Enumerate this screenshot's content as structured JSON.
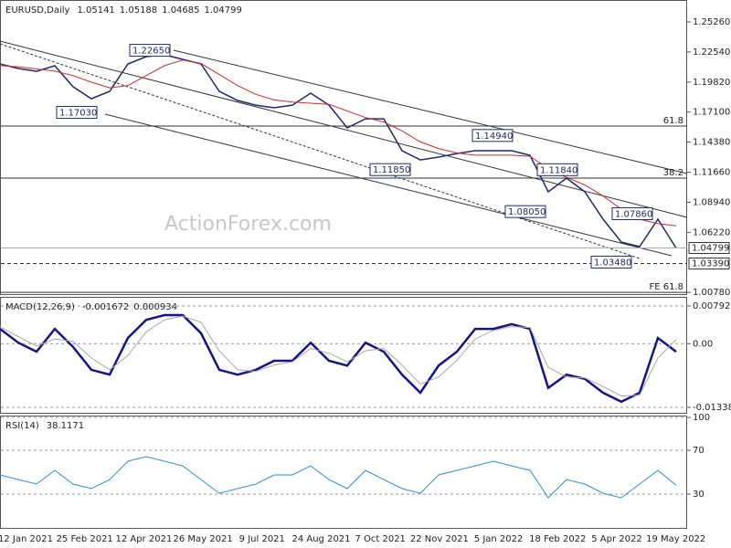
{
  "chart_data": [
    {
      "type": "line",
      "title": "EURUSD,Daily",
      "ohlc": [
        1.05141,
        1.05188,
        1.04685,
        1.04799
      ],
      "watermark": "ActionForex.com",
      "date_labels": [
        "12 Jan 2021",
        "25 Feb 2021",
        "12 Apr 2021",
        "26 May 2021",
        "9 Jul 2021",
        "24 Aug 2021",
        "7 Oct 2021",
        "22 Nov 2021",
        "5 Jan 2022",
        "18 Feb 2022",
        "5 Apr 2022",
        "19 May 2022"
      ],
      "ylim": [
        1.00623,
        1.27244
      ],
      "yticks": [
        {
          "value": 1.2526,
          "label": "1.25260"
        },
        {
          "value": 1.2254,
          "label": "1.22540"
        },
        {
          "value": 1.1982,
          "label": "1.19820"
        },
        {
          "value": 1.171,
          "label": "1.17100"
        },
        {
          "value": 1.1438,
          "label": "1.14380"
        },
        {
          "value": 1.1166,
          "label": "1.11660"
        },
        {
          "value": 1.0894,
          "label": "1.08940"
        },
        {
          "value": 1.0622,
          "label": "1.06220"
        },
        {
          "value": 1.0078,
          "label": "1.00780"
        }
      ],
      "series": [
        {
          "color": "#1f2a6e",
          "values": [
            1.2146,
            1.2104,
            1.2079,
            1.2129,
            1.1939,
            1.1831,
            1.1898,
            1.2146,
            1.2212,
            1.2228,
            1.2187,
            1.2146,
            1.1898,
            1.1815,
            1.1773,
            1.1749,
            1.1773,
            1.1881,
            1.1773,
            1.1567,
            1.1649,
            1.1649,
            1.136,
            1.1277,
            1.1302,
            1.1335,
            1.136,
            1.136,
            1.136,
            1.1319,
            1.0988,
            1.1112,
            1.0988,
            1.074,
            1.0533,
            1.0492,
            1.074,
            1.0479
          ]
        },
        {
          "color": "#d42a2a",
          "values": [
            1.213,
            1.212,
            1.21,
            1.208,
            1.204,
            1.198,
            1.193,
            1.195,
            1.204,
            1.213,
            1.218,
            1.215,
            1.205,
            1.195,
            1.187,
            1.182,
            1.18,
            1.179,
            1.178,
            1.172,
            1.166,
            1.162,
            1.154,
            1.144,
            1.138,
            1.134,
            1.132,
            1.132,
            1.132,
            1.131,
            1.12,
            1.112,
            1.105,
            1.095,
            1.083,
            1.074,
            1.07,
            1.068
          ]
        }
      ],
      "levels": [
        {
          "label": "61.8",
          "value": 1.1583
        },
        {
          "label": "38.2",
          "value": 1.1112
        },
        {
          "label": "FE 61.8",
          "value": 1.0078
        }
      ],
      "support": {
        "value": 1.0339,
        "label": "1.03390"
      },
      "annotations": [
        {
          "value": 1.2265,
          "label": "1.22650"
        },
        {
          "value": 1.1703,
          "label": "1.17030"
        },
        {
          "value": 1.1185,
          "label": "1.11850"
        },
        {
          "value": 1.1494,
          "label": "1.14940"
        },
        {
          "value": 1.1184,
          "label": "1.11840"
        },
        {
          "value": 1.0805,
          "label": "1.08050"
        },
        {
          "value": 1.0786,
          "label": "1.07860"
        },
        {
          "value": 1.0348,
          "label": "1.03480"
        }
      ]
    },
    {
      "type": "line",
      "title": "MACD(12,26,9)",
      "header_values": [
        -0.001672,
        0.000934
      ],
      "ylim": [
        -0.01453,
        0.00984
      ],
      "yticks": [
        0.007924,
        {
          "value": 0,
          "label": "0.00"
        },
        -0.013382
      ],
      "series": [
        {
          "color": "#14148a",
          "values": [
            0.0031,
            0.0002,
            -0.0017,
            0.0031,
            -0.0007,
            -0.0055,
            -0.0065,
            0.0012,
            0.005,
            0.006,
            0.006,
            0.0022,
            -0.0055,
            -0.0065,
            -0.0055,
            -0.0036,
            -0.0036,
            0.0002,
            -0.0036,
            -0.0046,
            0.0002,
            -0.0017,
            -0.0065,
            -0.0103,
            -0.0046,
            -0.0017,
            0.0031,
            0.0031,
            0.0041,
            0.0031,
            -0.0093,
            -0.0065,
            -0.0074,
            -0.0103,
            -0.0122,
            -0.0103,
            0.0012,
            -0.0017
          ]
        },
        {
          "color": "#a8a8a8",
          "values": [
            0.0035,
            0.0015,
            -0.0005,
            0.001,
            0.0005,
            -0.003,
            -0.0055,
            -0.0025,
            0.0025,
            0.005,
            0.0058,
            0.0045,
            -0.0015,
            -0.0055,
            -0.0058,
            -0.0045,
            -0.0038,
            -0.001,
            -0.002,
            -0.0038,
            -0.0015,
            -0.001,
            -0.0045,
            -0.0085,
            -0.007,
            -0.0035,
            0.001,
            0.0028,
            0.0036,
            0.0034,
            -0.005,
            -0.007,
            -0.0072,
            -0.009,
            -0.011,
            -0.0108,
            -0.003,
            0.0009
          ]
        }
      ]
    },
    {
      "type": "line",
      "title": "RSI(14)",
      "header_values": [
        38.1171
      ],
      "ylim": [
        -0.8,
        101.7
      ],
      "yticks": [
        100,
        70,
        30
      ],
      "series": [
        {
          "color": "#2a8fd8",
          "values": [
            47.5,
            43.3,
            39.2,
            51.7,
            39.2,
            35,
            43.3,
            60,
            64.2,
            60,
            55.8,
            43.3,
            30.8,
            35,
            39.2,
            47.5,
            47.5,
            55.8,
            43.3,
            35,
            51.7,
            43.3,
            35,
            30.8,
            47.5,
            51.7,
            55.8,
            60,
            55.8,
            51.7,
            26.7,
            43.3,
            39.2,
            30.8,
            26.7,
            39.2,
            51.7,
            38.1
          ]
        }
      ]
    }
  ]
}
